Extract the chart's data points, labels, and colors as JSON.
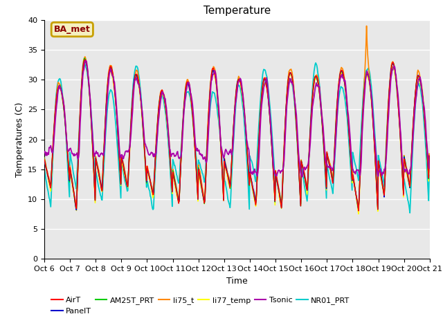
{
  "title": "Temperature",
  "ylabel": "Temperatures (C)",
  "xlabel": "Time",
  "ylim": [
    0,
    40
  ],
  "yticks": [
    0,
    5,
    10,
    15,
    20,
    25,
    30,
    35,
    40
  ],
  "n_days": 15,
  "background_color": "#e8e8e8",
  "legend_label": "BA_met",
  "legend_box_facecolor": "#f5f0c0",
  "legend_box_edgecolor": "#c8a000",
  "legend_box_text_color": "#8b0000",
  "series_order": [
    "NR01_PRT",
    "li77_temp",
    "li75_t",
    "AM25T_PRT",
    "PanelT",
    "AirT",
    "Tsonic"
  ],
  "series": {
    "AirT": {
      "color": "#ff0000",
      "lw": 1.0,
      "zorder": 5
    },
    "PanelT": {
      "color": "#0000cc",
      "lw": 1.0,
      "zorder": 4
    },
    "AM25T_PRT": {
      "color": "#00cc00",
      "lw": 1.0,
      "zorder": 4
    },
    "li75_t": {
      "color": "#ff8800",
      "lw": 1.2,
      "zorder": 3
    },
    "li77_temp": {
      "color": "#ffff00",
      "lw": 1.2,
      "zorder": 3
    },
    "Tsonic": {
      "color": "#aa00aa",
      "lw": 1.3,
      "zorder": 6
    },
    "NR01_PRT": {
      "color": "#00cccc",
      "lw": 1.3,
      "zorder": 2
    }
  },
  "legend_order": [
    "AirT",
    "PanelT",
    "AM25T_PRT",
    "li75_t",
    "li77_temp",
    "Tsonic",
    "NR01_PRT"
  ],
  "tick_labels": [
    "Oct 6",
    "Oct 7",
    "Oct 8",
    "Oct 9",
    "Oct 10",
    "Oct 11",
    "Oct 12",
    "Oct 13",
    "Oct 14",
    "Oct 15",
    "Oct 16",
    "Oct 17",
    "Oct 18",
    "Oct 19",
    "Oct 20",
    "Oct 21"
  ]
}
